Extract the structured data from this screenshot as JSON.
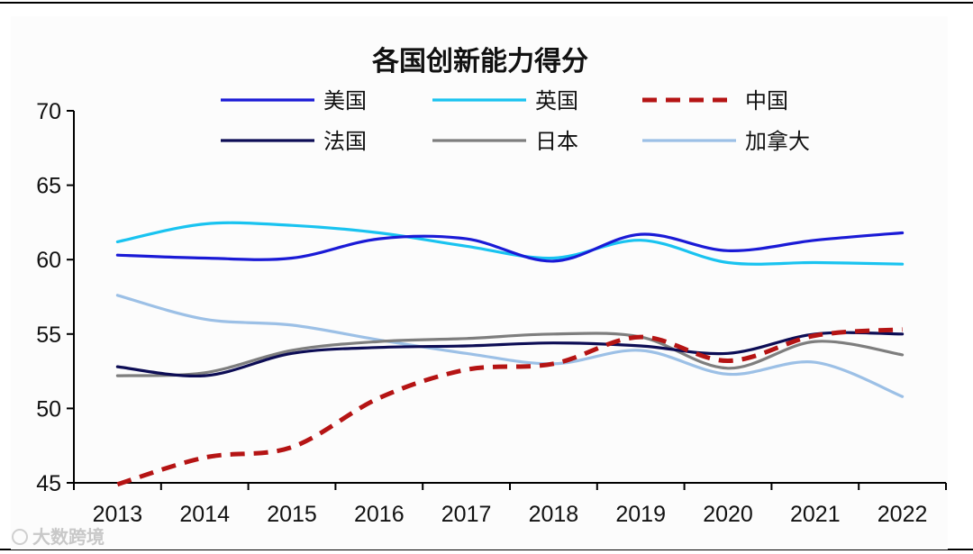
{
  "chart_data": {
    "type": "line",
    "title": "各国创新能力得分",
    "xlabel": "",
    "ylabel": "",
    "categories": [
      "2013",
      "2014",
      "2015",
      "2016",
      "2017",
      "2018",
      "2019",
      "2020",
      "2021",
      "2022"
    ],
    "ylim": [
      45,
      70
    ],
    "yticks": [
      45,
      50,
      55,
      60,
      65,
      70
    ],
    "grid": false,
    "legend_position": "top",
    "series": [
      {
        "name": "美国",
        "color": "#1a1ad6",
        "dash": false,
        "values": [
          60.3,
          60.1,
          60.1,
          61.4,
          61.4,
          59.9,
          61.7,
          60.6,
          61.3,
          61.8
        ]
      },
      {
        "name": "英国",
        "color": "#19c3f0",
        "dash": false,
        "values": [
          61.2,
          62.4,
          62.3,
          61.8,
          60.9,
          60.1,
          61.3,
          59.8,
          59.8,
          59.7
        ]
      },
      {
        "name": "中国",
        "color": "#b51414",
        "dash": true,
        "values": [
          44.9,
          46.7,
          47.4,
          50.7,
          52.6,
          53.0,
          54.8,
          53.2,
          54.9,
          55.3
        ]
      },
      {
        "name": "法国",
        "color": "#0d0d55",
        "dash": false,
        "values": [
          52.8,
          52.2,
          53.7,
          54.1,
          54.2,
          54.4,
          54.2,
          53.7,
          55.0,
          55.0
        ]
      },
      {
        "name": "日本",
        "color": "#7e7e7e",
        "dash": false,
        "values": [
          52.2,
          52.4,
          53.9,
          54.5,
          54.7,
          55.0,
          54.8,
          52.7,
          54.5,
          53.6
        ]
      },
      {
        "name": "加拿大",
        "color": "#9cc0e6",
        "dash": false,
        "values": [
          57.6,
          56.0,
          55.6,
          54.6,
          53.7,
          53.0,
          53.9,
          52.3,
          53.1,
          50.8
        ]
      }
    ]
  },
  "watermark": "大数跨境"
}
